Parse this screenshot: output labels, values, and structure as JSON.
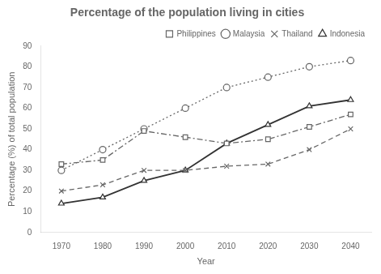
{
  "chart_data": {
    "type": "line",
    "title": "Percentage of the population living in cities",
    "xlabel": "Year",
    "ylabel": "Percentage (%) of total population",
    "x": [
      1970,
      1980,
      1990,
      2000,
      2010,
      2020,
      2030,
      2040
    ],
    "series": [
      {
        "name": "Philippines",
        "color": "#666666",
        "marker": "square",
        "line_style": "dashdot",
        "values": [
          33,
          35,
          49,
          46,
          43,
          45,
          51,
          57
        ]
      },
      {
        "name": "Malaysia",
        "color": "#666666",
        "marker": "circle",
        "line_style": "dotted",
        "values": [
          30,
          40,
          50,
          60,
          70,
          75,
          80,
          83
        ]
      },
      {
        "name": "Thailand",
        "color": "#666666",
        "marker": "x",
        "line_style": "dashed",
        "values": [
          20,
          23,
          30,
          30,
          32,
          33,
          40,
          50
        ]
      },
      {
        "name": "Indonesia",
        "color": "#333333",
        "marker": "triangle",
        "line_style": "solid",
        "values": [
          14,
          17,
          25,
          30,
          43,
          52,
          61,
          64
        ]
      }
    ],
    "xlim": [
      1965,
      2045
    ],
    "xticks": [
      1970,
      1980,
      1990,
      2000,
      2010,
      2020,
      2030,
      2040
    ],
    "ylim": [
      0,
      90
    ],
    "yticks": [
      0,
      10,
      20,
      30,
      40,
      50,
      60,
      70,
      80,
      90
    ],
    "grid": false,
    "legend": "upper right"
  }
}
